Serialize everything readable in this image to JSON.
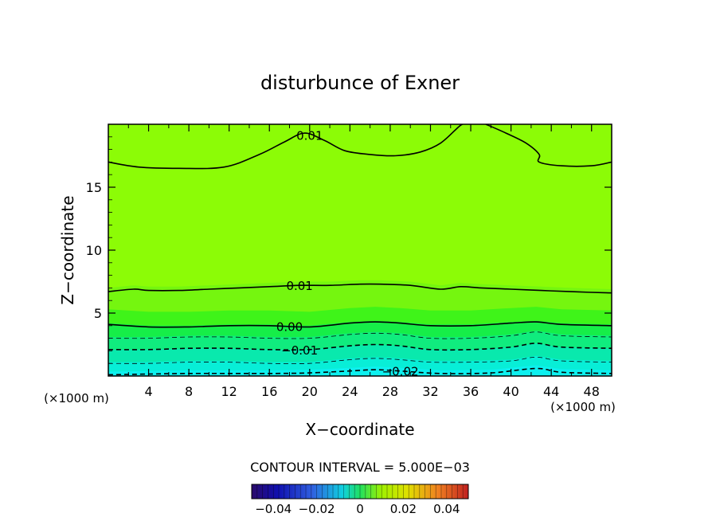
{
  "chart_data": {
    "type": "contour",
    "title": "disturbunce of Exner",
    "xlabel": "X−coordinate",
    "ylabel": "Z−coordinate",
    "x_unit_label": "(×1000 m)",
    "y_unit_label": "(×1000 m)",
    "xlim": [
      0,
      50
    ],
    "ylim": [
      0,
      20
    ],
    "x_ticks": [
      4,
      8,
      12,
      16,
      20,
      24,
      28,
      32,
      36,
      40,
      44,
      48
    ],
    "y_ticks": [
      5,
      10,
      15
    ],
    "contour_interval_text": "CONTOUR INTERVAL = 5.000E−03",
    "contour_interval": 0.005,
    "colorbar": {
      "range": [
        -0.05,
        0.05
      ],
      "tick_labels": [
        "−0.04",
        "−0.02",
        "0",
        "0.02",
        "0.04"
      ],
      "tick_values": [
        -0.04,
        -0.02,
        0,
        0.02,
        0.04
      ]
    },
    "fill_bands": [
      {
        "z_top": 20.0,
        "color": "#8cfc06"
      },
      {
        "z_top": 7.0,
        "color": "#75f60f"
      },
      {
        "z_top": 5.3,
        "color": "#3ff419"
      },
      {
        "z_top": 4.2,
        "color": "#16ee48"
      },
      {
        "z_top": 3.1,
        "color": "#10ec7e"
      },
      {
        "z_top": 2.1,
        "color": "#09e9ad"
      },
      {
        "z_top": 1.1,
        "color": "#08eed7"
      },
      {
        "z_top": 0.35,
        "color": "#0ef0ef"
      }
    ],
    "background_color": "#92fa02",
    "contours": [
      {
        "level": 0.01,
        "style": "solid",
        "label": "0.01",
        "points": [
          [
            0,
            17.0
          ],
          [
            3,
            16.6
          ],
          [
            7,
            16.5
          ],
          [
            11.5,
            16.6
          ],
          [
            15,
            17.6
          ],
          [
            17.5,
            18.6
          ],
          [
            19.5,
            19.3
          ],
          [
            21.5,
            18.7
          ],
          [
            23.5,
            17.9
          ],
          [
            26,
            17.6
          ],
          [
            28.5,
            17.5
          ],
          [
            31,
            17.8
          ],
          [
            33,
            18.5
          ],
          [
            34.8,
            19.8
          ],
          [
            35.2,
            20.0
          ]
        ]
      },
      {
        "level": 0.01,
        "style": "solid",
        "label": "",
        "points": [
          [
            37.5,
            20.0
          ],
          [
            39.5,
            19.3
          ],
          [
            41.5,
            18.5
          ],
          [
            42.8,
            17.6
          ],
          [
            42.8,
            17.0
          ],
          [
            45,
            16.7
          ],
          [
            48,
            16.7
          ],
          [
            50,
            17.0
          ]
        ]
      },
      {
        "level": 0.01,
        "style": "solid",
        "label": "0.01",
        "points": [
          [
            0,
            6.7
          ],
          [
            2.5,
            6.9
          ],
          [
            4,
            6.8
          ],
          [
            7,
            6.8
          ],
          [
            10,
            6.9
          ],
          [
            13,
            7.0
          ],
          [
            16,
            7.1
          ],
          [
            19,
            7.2
          ],
          [
            22,
            7.2
          ],
          [
            25,
            7.3
          ],
          [
            27,
            7.3
          ],
          [
            30,
            7.2
          ],
          [
            33,
            6.9
          ],
          [
            35,
            7.1
          ],
          [
            37,
            7.0
          ],
          [
            40,
            6.9
          ],
          [
            43,
            6.8
          ],
          [
            46,
            6.7
          ],
          [
            50,
            6.6
          ]
        ]
      },
      {
        "level": 0.0,
        "style": "solid",
        "label": "0.00",
        "points": [
          [
            0,
            4.1
          ],
          [
            4,
            3.9
          ],
          [
            8,
            3.9
          ],
          [
            12,
            4.0
          ],
          [
            16,
            4.0
          ],
          [
            20,
            3.9
          ],
          [
            24,
            4.2
          ],
          [
            26.5,
            4.3
          ],
          [
            29,
            4.2
          ],
          [
            32,
            4.0
          ],
          [
            36,
            4.0
          ],
          [
            40,
            4.2
          ],
          [
            42.5,
            4.3
          ],
          [
            45,
            4.1
          ],
          [
            50,
            4.0
          ]
        ]
      },
      {
        "level": -0.005,
        "style": "dashed",
        "label": "",
        "points": [
          [
            0,
            3.0
          ],
          [
            4,
            3.0
          ],
          [
            8,
            3.1
          ],
          [
            12,
            3.1
          ],
          [
            16,
            3.0
          ],
          [
            20,
            3.0
          ],
          [
            24,
            3.3
          ],
          [
            26.5,
            3.4
          ],
          [
            29,
            3.3
          ],
          [
            32,
            3.0
          ],
          [
            36,
            3.0
          ],
          [
            40,
            3.2
          ],
          [
            42.5,
            3.5
          ],
          [
            45,
            3.2
          ],
          [
            50,
            3.1
          ]
        ]
      },
      {
        "level": -0.01,
        "style": "dashed",
        "label": "−0.01",
        "points": [
          [
            0,
            2.1
          ],
          [
            4,
            2.1
          ],
          [
            8,
            2.2
          ],
          [
            12,
            2.2
          ],
          [
            16,
            2.1
          ],
          [
            20,
            2.1
          ],
          [
            24,
            2.4
          ],
          [
            26.5,
            2.5
          ],
          [
            29,
            2.4
          ],
          [
            32,
            2.1
          ],
          [
            36,
            2.1
          ],
          [
            40,
            2.3
          ],
          [
            42.5,
            2.6
          ],
          [
            45,
            2.3
          ],
          [
            50,
            2.2
          ]
        ]
      },
      {
        "level": -0.015,
        "style": "dashed",
        "label": "",
        "points": [
          [
            0,
            1.0
          ],
          [
            4,
            1.0
          ],
          [
            8,
            1.1
          ],
          [
            12,
            1.1
          ],
          [
            16,
            1.0
          ],
          [
            20,
            1.0
          ],
          [
            24,
            1.3
          ],
          [
            26.5,
            1.4
          ],
          [
            29,
            1.3
          ],
          [
            32,
            1.1
          ],
          [
            36,
            1.1
          ],
          [
            40,
            1.2
          ],
          [
            42.5,
            1.5
          ],
          [
            45,
            1.2
          ],
          [
            50,
            1.1
          ]
        ]
      },
      {
        "level": -0.02,
        "style": "dashed",
        "label": "−0.02",
        "points": [
          [
            0,
            0.1
          ],
          [
            8,
            0.2
          ],
          [
            16,
            0.2
          ],
          [
            20,
            0.25
          ],
          [
            24,
            0.4
          ],
          [
            26.5,
            0.5
          ],
          [
            29,
            0.4
          ],
          [
            33,
            0.2
          ],
          [
            38,
            0.25
          ],
          [
            42.5,
            0.6
          ],
          [
            45,
            0.3
          ],
          [
            50,
            0.2
          ]
        ]
      }
    ]
  }
}
